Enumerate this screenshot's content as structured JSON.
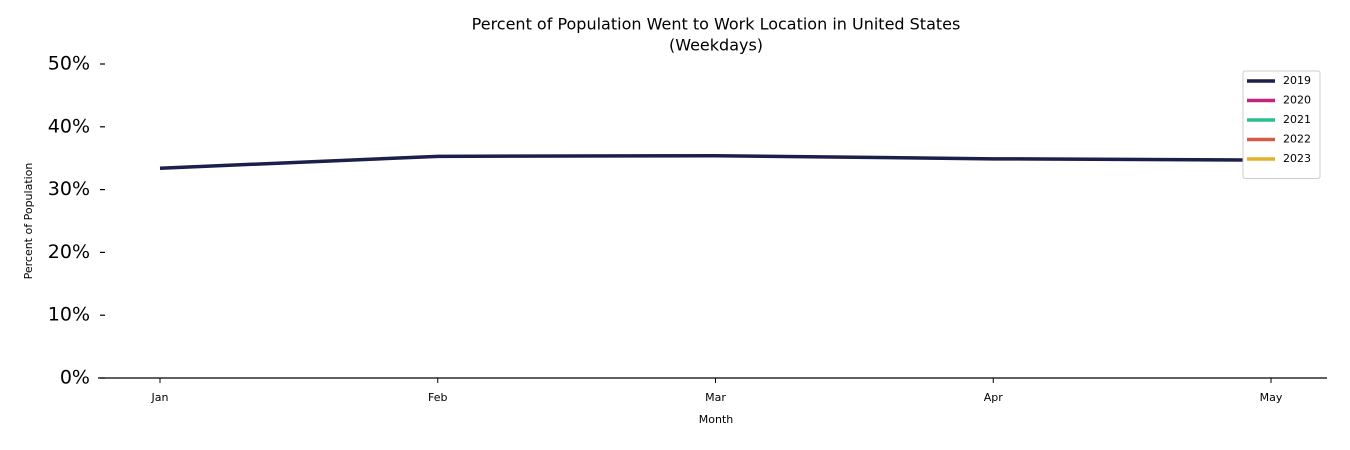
{
  "chart_data": {
    "type": "line",
    "title": "Percent of Population Went to Work Location in United States",
    "subtitle": "(Weekdays)",
    "x_label": "Month",
    "y_label": "Percent of Population",
    "categories": [
      "Jan",
      "Feb",
      "Mar",
      "Apr",
      "May"
    ],
    "series": [
      {
        "name": "2019",
        "color": "#1b1f4b",
        "values": [
          33.4,
          35.3,
          35.4,
          34.9,
          34.7
        ]
      },
      {
        "name": "2020",
        "color": "#c4237f",
        "values": [
          null,
          null,
          null,
          null,
          null
        ]
      },
      {
        "name": "2021",
        "color": "#2bbf8f",
        "values": [
          null,
          null,
          null,
          null,
          null
        ]
      },
      {
        "name": "2022",
        "color": "#d65a4a",
        "values": [
          null,
          null,
          null,
          null,
          null
        ]
      },
      {
        "name": "2023",
        "color": "#e0b22a",
        "values": [
          null,
          null,
          null,
          null,
          null
        ]
      }
    ],
    "ylim": [
      0,
      50
    ],
    "yticks": [
      {
        "value": 0,
        "label": "0%"
      },
      {
        "value": 10,
        "label": "10%"
      },
      {
        "value": 20,
        "label": "20%"
      },
      {
        "value": 30,
        "label": "30%"
      },
      {
        "value": 40,
        "label": "40%"
      },
      {
        "value": 50,
        "label": "50%"
      }
    ],
    "legend": "upper right",
    "grid": false
  }
}
